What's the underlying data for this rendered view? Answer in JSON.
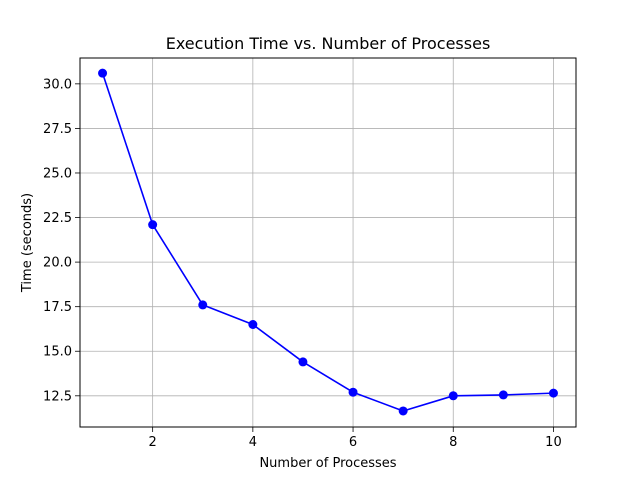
{
  "chart_data": {
    "type": "line",
    "title": "Execution Time vs. Number of Processes",
    "xlabel": "Number of Processes",
    "ylabel": "Time (seconds)",
    "xlim": [
      0.55,
      10.45
    ],
    "ylim": [
      10.75,
      31.45
    ],
    "grid": true,
    "x_ticks": [
      2,
      4,
      6,
      8,
      10
    ],
    "y_ticks": [
      12.5,
      15.0,
      17.5,
      20.0,
      22.5,
      25.0,
      27.5,
      30.0
    ],
    "x_tick_labels": [
      "2",
      "4",
      "6",
      "8",
      "10"
    ],
    "y_tick_labels": [
      "12.5",
      "15.0",
      "17.5",
      "20.0",
      "22.5",
      "25.0",
      "27.5",
      "30.0"
    ],
    "series": [
      {
        "color": "#0000ff",
        "marker": "circle",
        "x": [
          1,
          2,
          3,
          4,
          5,
          6,
          7,
          8,
          9,
          10
        ],
        "y": [
          30.6,
          22.1,
          17.6,
          16.5,
          14.4,
          12.7,
          11.65,
          12.5,
          12.55,
          12.65
        ]
      }
    ]
  }
}
